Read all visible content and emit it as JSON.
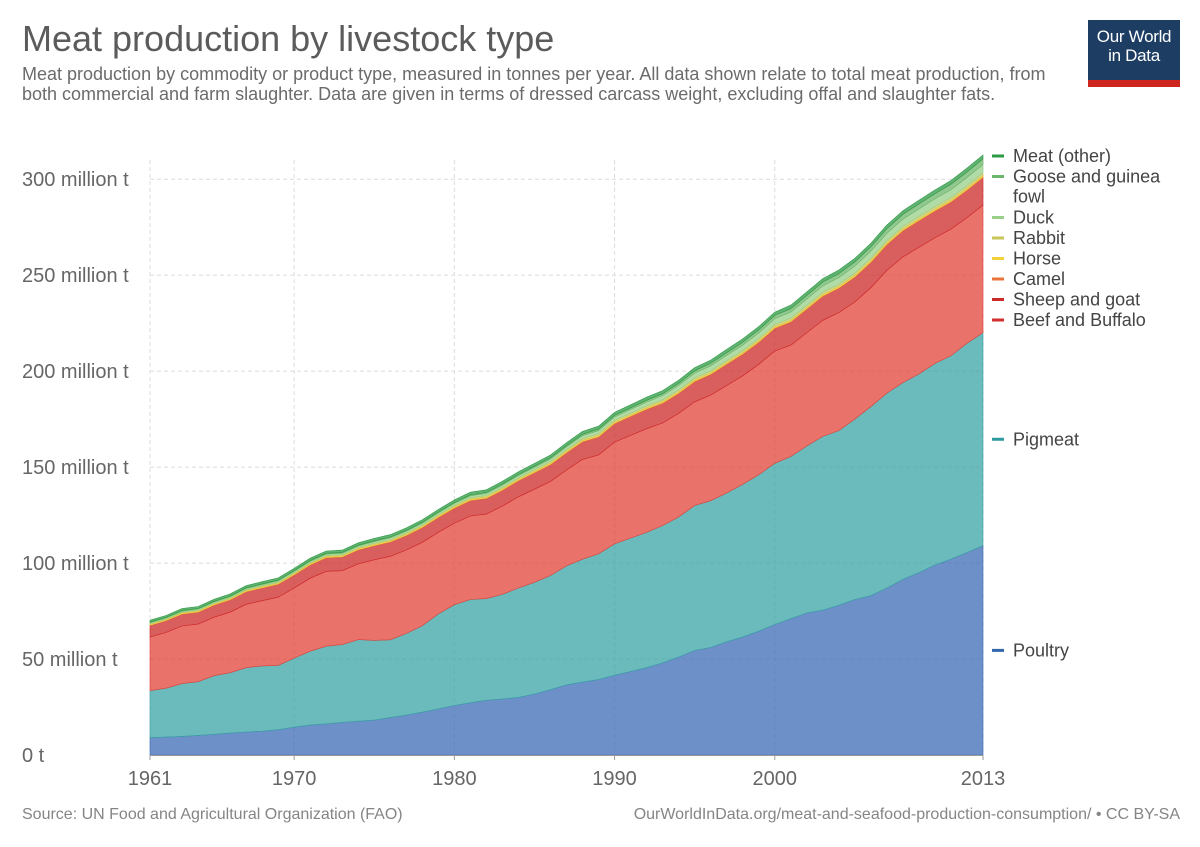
{
  "header": {
    "title": "Meat production by livestock type",
    "subtitle": "Meat production by commodity or product type, measured in tonnes per year. All data shown relate to total meat production, from both commercial and farm slaughter. Data are given in terms of dressed carcass weight, excluding offal and slaughter fats."
  },
  "logo": {
    "line1": "Our World",
    "line2": "in Data",
    "bg_color": "#1d3d63",
    "accent_color": "#ce261e"
  },
  "footer": {
    "source": "Source: UN Food and Agricultural Organization (FAO)",
    "url": "OurWorldInData.org/meat-and-seafood-production-consumption/ • CC BY-SA"
  },
  "chart_data": {
    "type": "area",
    "stacked": true,
    "x": [
      1961,
      1962,
      1963,
      1964,
      1965,
      1966,
      1967,
      1968,
      1969,
      1970,
      1971,
      1972,
      1973,
      1974,
      1975,
      1976,
      1977,
      1978,
      1979,
      1980,
      1981,
      1982,
      1983,
      1984,
      1985,
      1986,
      1987,
      1988,
      1989,
      1990,
      1991,
      1992,
      1993,
      1994,
      1995,
      1996,
      1997,
      1998,
      1999,
      2000,
      2001,
      2002,
      2003,
      2004,
      2005,
      2006,
      2007,
      2008,
      2009,
      2010,
      2011,
      2012,
      2013
    ],
    "xlim": [
      1961,
      2013
    ],
    "x_ticks": [
      1961,
      1970,
      1980,
      1990,
      2000,
      2013
    ],
    "ylim": [
      0,
      310
    ],
    "y_ticks": [
      0,
      50,
      100,
      150,
      200,
      250,
      300
    ],
    "y_tick_labels": [
      "0 t",
      "50 million t",
      "100 million t",
      "150 million t",
      "200 million t",
      "250 million t",
      "300 million t"
    ],
    "unit": "million tonnes",
    "grid": true,
    "legend_position": "right",
    "series": [
      {
        "name": "Poultry",
        "color": "#3d6bb5",
        "values": [
          9,
          9.3,
          9.7,
          10.2,
          10.8,
          11.4,
          12,
          12.4,
          13.2,
          14.5,
          15.6,
          16.2,
          17,
          17.6,
          18.2,
          19.5,
          20.8,
          22.3,
          24,
          25.8,
          27.2,
          28.5,
          29.2,
          30,
          31.8,
          34,
          36.5,
          38,
          39.3,
          41.5,
          43.5,
          45.5,
          48,
          51,
          54.5,
          56,
          59,
          61.5,
          64.5,
          68,
          71,
          74,
          75.5,
          78,
          81,
          83,
          87,
          91.5,
          95,
          99,
          102,
          105.5,
          109
        ]
      },
      {
        "name": "Pigmeat",
        "color": "#3aa3a6",
        "values": [
          24.5,
          25.5,
          27.5,
          28,
          30.5,
          31.5,
          33.5,
          34,
          33.5,
          36,
          38.5,
          40.5,
          40.5,
          42.5,
          41.5,
          40.5,
          42.5,
          45,
          49.5,
          52.5,
          53.8,
          53,
          54.5,
          57,
          58.2,
          59.5,
          62,
          64,
          65.5,
          68.5,
          69.5,
          70.5,
          71.5,
          73,
          75.5,
          76.5,
          77.5,
          79.5,
          81.5,
          84,
          84.5,
          87,
          90.5,
          91,
          94,
          98.5,
          101.5,
          102.5,
          103.5,
          105,
          106,
          109,
          111
        ]
      },
      {
        "name": "Beef and Buffalo",
        "color": "#e2443a",
        "values": [
          28,
          29,
          30,
          30,
          30.5,
          31.5,
          33,
          34,
          35.5,
          36.5,
          38,
          39,
          38.5,
          39.5,
          42,
          43.5,
          43.5,
          43.5,
          42.5,
          42.5,
          43.5,
          44,
          46,
          47.5,
          48.5,
          49,
          50,
          52,
          51.5,
          53,
          53.5,
          54,
          53.5,
          54,
          54,
          55,
          56,
          56.5,
          57.5,
          58.5,
          58,
          59,
          60.5,
          61.5,
          61,
          62,
          64,
          65.5,
          66,
          65.5,
          66,
          65.5,
          66.5
        ]
      },
      {
        "name": "Sheep and goat",
        "color": "#cc2a2a",
        "values": [
          6,
          6.1,
          6.2,
          6.2,
          6.3,
          6.4,
          6.5,
          6.6,
          6.7,
          6.8,
          6.9,
          7,
          7.1,
          7.2,
          7.3,
          7.4,
          7.5,
          7.6,
          7.7,
          7.8,
          8,
          8.1,
          8.2,
          8.3,
          8.5,
          8.7,
          8.9,
          9.1,
          9.3,
          9.6,
          9.8,
          10,
          10.2,
          10.3,
          10.5,
          10.7,
          11,
          11.2,
          11.4,
          11.7,
          12,
          12.2,
          12.4,
          12.6,
          12.9,
          13.1,
          13.3,
          13.5,
          13.7,
          13.8,
          14,
          14.2,
          14.3
        ]
      },
      {
        "name": "Camel",
        "color": "#e8743b",
        "values": [
          0.15,
          0.15,
          0.16,
          0.16,
          0.17,
          0.17,
          0.18,
          0.18,
          0.19,
          0.19,
          0.2,
          0.2,
          0.21,
          0.21,
          0.22,
          0.22,
          0.23,
          0.23,
          0.24,
          0.24,
          0.25,
          0.25,
          0.26,
          0.26,
          0.27,
          0.27,
          0.28,
          0.28,
          0.29,
          0.29,
          0.3,
          0.3,
          0.31,
          0.31,
          0.32,
          0.32,
          0.33,
          0.33,
          0.34,
          0.34,
          0.35,
          0.35,
          0.36,
          0.36,
          0.37,
          0.37,
          0.38,
          0.38,
          0.39,
          0.39,
          0.4,
          0.4,
          0.41
        ]
      },
      {
        "name": "Horse",
        "color": "#f2d13a",
        "values": [
          0.4,
          0.4,
          0.4,
          0.41,
          0.41,
          0.42,
          0.42,
          0.43,
          0.43,
          0.44,
          0.44,
          0.45,
          0.45,
          0.46,
          0.46,
          0.47,
          0.47,
          0.48,
          0.48,
          0.49,
          0.49,
          0.5,
          0.5,
          0.51,
          0.51,
          0.52,
          0.52,
          0.53,
          0.53,
          0.54,
          0.54,
          0.55,
          0.55,
          0.56,
          0.56,
          0.57,
          0.57,
          0.58,
          0.58,
          0.59,
          0.6,
          0.6,
          0.61,
          0.61,
          0.62,
          0.62,
          0.63,
          0.63,
          0.64,
          0.64,
          0.65,
          0.65,
          0.66
        ]
      },
      {
        "name": "Rabbit",
        "color": "#c9c65a",
        "values": [
          0.4,
          0.42,
          0.44,
          0.46,
          0.48,
          0.5,
          0.52,
          0.54,
          0.56,
          0.58,
          0.6,
          0.62,
          0.64,
          0.66,
          0.68,
          0.7,
          0.72,
          0.74,
          0.76,
          0.78,
          0.8,
          0.82,
          0.84,
          0.86,
          0.88,
          0.9,
          0.92,
          0.94,
          0.96,
          0.98,
          1,
          1.02,
          1.04,
          1.06,
          1.08,
          1.1,
          1.12,
          1.14,
          1.16,
          1.18,
          1.2,
          1.22,
          1.24,
          1.26,
          1.28,
          1.3,
          1.32,
          1.34,
          1.36,
          1.38,
          1.4,
          1.42,
          1.44
        ]
      },
      {
        "name": "Duck",
        "color": "#98d08a",
        "values": [
          0.5,
          0.52,
          0.54,
          0.56,
          0.58,
          0.6,
          0.62,
          0.64,
          0.66,
          0.68,
          0.7,
          0.72,
          0.74,
          0.77,
          0.8,
          0.83,
          0.86,
          0.89,
          0.92,
          0.95,
          1,
          1.05,
          1.1,
          1.15,
          1.2,
          1.3,
          1.4,
          1.5,
          1.6,
          1.7,
          1.85,
          2,
          2.15,
          2.3,
          2.5,
          2.6,
          2.7,
          2.8,
          2.9,
          3,
          3.1,
          3.2,
          3.3,
          3.4,
          3.5,
          3.6,
          3.7,
          3.8,
          3.9,
          4,
          4.1,
          4.2,
          4.3
        ]
      },
      {
        "name": "Goose and guinea fowl",
        "color": "#6db56a",
        "values": [
          0.3,
          0.31,
          0.32,
          0.33,
          0.34,
          0.35,
          0.36,
          0.37,
          0.38,
          0.39,
          0.4,
          0.41,
          0.42,
          0.43,
          0.44,
          0.45,
          0.46,
          0.47,
          0.48,
          0.5,
          0.52,
          0.54,
          0.56,
          0.58,
          0.6,
          0.65,
          0.7,
          0.75,
          0.8,
          0.85,
          0.9,
          0.95,
          1,
          1.1,
          1.2,
          1.3,
          1.4,
          1.5,
          1.6,
          1.7,
          1.8,
          1.9,
          2,
          2.1,
          2.2,
          2.3,
          2.4,
          2.5,
          2.6,
          2.7,
          2.8,
          2.9,
          3
        ]
      },
      {
        "name": "Meat (other)",
        "color": "#2e9a44",
        "values": [
          1,
          1,
          1.02,
          1.04,
          1.06,
          1.08,
          1.1,
          1.12,
          1.14,
          1.16,
          1.18,
          1.2,
          1.22,
          1.24,
          1.26,
          1.28,
          1.3,
          1.32,
          1.34,
          1.36,
          1.38,
          1.4,
          1.42,
          1.44,
          1.46,
          1.48,
          1.5,
          1.52,
          1.54,
          1.56,
          1.58,
          1.6,
          1.62,
          1.64,
          1.66,
          1.68,
          1.7,
          1.72,
          1.74,
          1.76,
          1.78,
          1.8,
          1.82,
          1.84,
          1.86,
          1.88,
          1.9,
          1.92,
          1.94,
          1.96,
          1.98,
          2,
          2.02
        ]
      }
    ],
    "legend": [
      {
        "name": "Meat (other)",
        "lines": [
          "Meat (other)"
        ],
        "color": "#2e9a44"
      },
      {
        "name": "Goose and guinea fowl",
        "lines": [
          "Goose and guinea",
          "fowl"
        ],
        "color": "#6db56a"
      },
      {
        "name": "Duck",
        "lines": [
          "Duck"
        ],
        "color": "#98d08a"
      },
      {
        "name": "Rabbit",
        "lines": [
          "Rabbit"
        ],
        "color": "#c9c65a"
      },
      {
        "name": "Horse",
        "lines": [
          "Horse"
        ],
        "color": "#f2d13a"
      },
      {
        "name": "Camel",
        "lines": [
          "Camel"
        ],
        "color": "#e8743b"
      },
      {
        "name": "Sheep and goat",
        "lines": [
          "Sheep and goat"
        ],
        "color": "#cc2a2a"
      },
      {
        "name": "Beef and Buffalo",
        "lines": [
          "Beef and Buffalo"
        ],
        "color": "#d42f2f"
      },
      {
        "name": "Pigmeat",
        "lines": [
          "Pigmeat"
        ],
        "color": "#2c9a9e"
      },
      {
        "name": "Poultry",
        "lines": [
          "Poultry"
        ],
        "color": "#3466ad"
      }
    ]
  }
}
